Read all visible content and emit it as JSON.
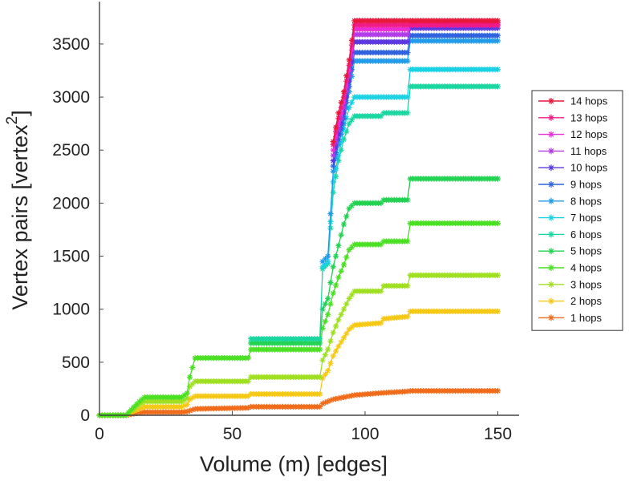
{
  "chart_data": {
    "type": "line",
    "xlabel": "Volume (m) [edges]",
    "ylabel": "Vertex pairs [vertex",
    "ylabel_superscript": "2",
    "ylabel_suffix": "]",
    "xlim": [
      0,
      158
    ],
    "ylim": [
      0,
      3900
    ],
    "xticks": [
      0,
      50,
      100,
      150
    ],
    "yticks": [
      0,
      500,
      1000,
      1500,
      2000,
      2500,
      3000,
      3500
    ],
    "grid": false,
    "legend_position": "right",
    "marker": "asterisk",
    "series": [
      {
        "name": "14 hops",
        "color": "#e8173a",
        "points": [
          [
            88,
            2580
          ],
          [
            90,
            2850
          ],
          [
            92,
            3050
          ],
          [
            94,
            3350
          ],
          [
            96,
            3720
          ],
          [
            116,
            3720
          ],
          [
            150,
            3720
          ]
        ]
      },
      {
        "name": "13 hops",
        "color": "#f01a86",
        "points": [
          [
            88,
            2550
          ],
          [
            90,
            2800
          ],
          [
            92,
            3000
          ],
          [
            94,
            3300
          ],
          [
            96,
            3680
          ],
          [
            116,
            3680
          ],
          [
            150,
            3680
          ]
        ]
      },
      {
        "name": "12 hops",
        "color": "#ea2cd6",
        "points": [
          [
            88,
            2500
          ],
          [
            90,
            2750
          ],
          [
            92,
            2950
          ],
          [
            94,
            3250
          ],
          [
            96,
            3640
          ],
          [
            116,
            3640
          ],
          [
            117,
            3700
          ],
          [
            150,
            3700
          ]
        ]
      },
      {
        "name": "11 hops",
        "color": "#b13ae8",
        "points": [
          [
            88,
            2450
          ],
          [
            90,
            2700
          ],
          [
            92,
            2900
          ],
          [
            94,
            3200
          ],
          [
            96,
            3590
          ],
          [
            116,
            3590
          ],
          [
            117,
            3680
          ],
          [
            150,
            3680
          ]
        ]
      },
      {
        "name": "10 hops",
        "color": "#5a36e0",
        "points": [
          [
            88,
            2400
          ],
          [
            90,
            2650
          ],
          [
            92,
            2850
          ],
          [
            94,
            3150
          ],
          [
            96,
            3520
          ],
          [
            116,
            3520
          ],
          [
            117,
            3650
          ],
          [
            150,
            3650
          ]
        ]
      },
      {
        "name": "9 hops",
        "color": "#2e62de",
        "points": [
          [
            88,
            2350
          ],
          [
            90,
            2600
          ],
          [
            92,
            2800
          ],
          [
            94,
            3100
          ],
          [
            96,
            3420
          ],
          [
            116,
            3420
          ],
          [
            117,
            3580
          ],
          [
            150,
            3580
          ]
        ]
      },
      {
        "name": "8 hops",
        "color": "#1e9ae8",
        "points": [
          [
            84,
            1450
          ],
          [
            86,
            1500
          ],
          [
            88,
            2300
          ],
          [
            90,
            2550
          ],
          [
            92,
            2750
          ],
          [
            94,
            3050
          ],
          [
            96,
            3340
          ],
          [
            116,
            3340
          ],
          [
            117,
            3530
          ],
          [
            150,
            3530
          ]
        ]
      },
      {
        "name": "7 hops",
        "color": "#18d2e4",
        "points": [
          [
            84,
            1400
          ],
          [
            86,
            1450
          ],
          [
            88,
            2200
          ],
          [
            90,
            2450
          ],
          [
            92,
            2700
          ],
          [
            94,
            2900
          ],
          [
            96,
            3000
          ],
          [
            106,
            3000
          ],
          [
            116,
            3000
          ],
          [
            117,
            3260
          ],
          [
            150,
            3260
          ]
        ]
      },
      {
        "name": "6 hops",
        "color": "#18d6a0",
        "points": [
          [
            57,
            720
          ],
          [
            83,
            720
          ],
          [
            84,
            1380
          ],
          [
            86,
            1430
          ],
          [
            88,
            2100
          ],
          [
            90,
            2400
          ],
          [
            92,
            2600
          ],
          [
            94,
            2750
          ],
          [
            96,
            2820
          ],
          [
            106,
            2820
          ],
          [
            107,
            2850
          ],
          [
            116,
            2850
          ],
          [
            117,
            3100
          ],
          [
            150,
            3100
          ]
        ]
      },
      {
        "name": "5 hops",
        "color": "#20d250",
        "points": [
          [
            57,
            680
          ],
          [
            83,
            680
          ],
          [
            84,
            1000
          ],
          [
            86,
            1100
          ],
          [
            88,
            1400
          ],
          [
            90,
            1600
          ],
          [
            92,
            1800
          ],
          [
            94,
            1950
          ],
          [
            96,
            2000
          ],
          [
            106,
            2000
          ],
          [
            107,
            2030
          ],
          [
            116,
            2030
          ],
          [
            117,
            2230
          ],
          [
            150,
            2230
          ]
        ]
      },
      {
        "name": "4 hops",
        "color": "#48e020",
        "points": [
          [
            0,
            0
          ],
          [
            10,
            0
          ],
          [
            13,
            80
          ],
          [
            15,
            130
          ],
          [
            17,
            170
          ],
          [
            31,
            170
          ],
          [
            33,
            210
          ],
          [
            34,
            360
          ],
          [
            36,
            540
          ],
          [
            56,
            540
          ],
          [
            57,
            620
          ],
          [
            83,
            620
          ],
          [
            84,
            820
          ],
          [
            86,
            950
          ],
          [
            88,
            1150
          ],
          [
            90,
            1300
          ],
          [
            92,
            1420
          ],
          [
            94,
            1560
          ],
          [
            96,
            1610
          ],
          [
            106,
            1610
          ],
          [
            107,
            1640
          ],
          [
            116,
            1640
          ],
          [
            117,
            1810
          ],
          [
            150,
            1810
          ]
        ]
      },
      {
        "name": "3 hops",
        "color": "#9ee020",
        "points": [
          [
            0,
            0
          ],
          [
            10,
            0
          ],
          [
            13,
            60
          ],
          [
            15,
            100
          ],
          [
            17,
            130
          ],
          [
            31,
            130
          ],
          [
            33,
            160
          ],
          [
            34,
            270
          ],
          [
            36,
            320
          ],
          [
            56,
            320
          ],
          [
            57,
            360
          ],
          [
            83,
            360
          ],
          [
            84,
            520
          ],
          [
            86,
            620
          ],
          [
            88,
            780
          ],
          [
            90,
            900
          ],
          [
            92,
            1000
          ],
          [
            94,
            1100
          ],
          [
            96,
            1170
          ],
          [
            106,
            1170
          ],
          [
            107,
            1220
          ],
          [
            116,
            1220
          ],
          [
            117,
            1320
          ],
          [
            150,
            1320
          ]
        ]
      },
      {
        "name": "2 hops",
        "color": "#f5c814",
        "points": [
          [
            0,
            0
          ],
          [
            10,
            0
          ],
          [
            13,
            40
          ],
          [
            15,
            60
          ],
          [
            17,
            80
          ],
          [
            31,
            80
          ],
          [
            33,
            100
          ],
          [
            34,
            150
          ],
          [
            36,
            180
          ],
          [
            56,
            180
          ],
          [
            57,
            200
          ],
          [
            83,
            200
          ],
          [
            84,
            350
          ],
          [
            86,
            420
          ],
          [
            88,
            560
          ],
          [
            90,
            650
          ],
          [
            92,
            730
          ],
          [
            94,
            810
          ],
          [
            96,
            850
          ],
          [
            106,
            870
          ],
          [
            107,
            910
          ],
          [
            116,
            930
          ],
          [
            117,
            980
          ],
          [
            150,
            980
          ]
        ]
      },
      {
        "name": "1 hops",
        "color": "#f06a18",
        "points": [
          [
            0,
            0
          ],
          [
            10,
            0
          ],
          [
            13,
            15
          ],
          [
            15,
            25
          ],
          [
            17,
            30
          ],
          [
            31,
            30
          ],
          [
            33,
            35
          ],
          [
            36,
            60
          ],
          [
            56,
            70
          ],
          [
            57,
            80
          ],
          [
            83,
            80
          ],
          [
            84,
            110
          ],
          [
            86,
            130
          ],
          [
            88,
            150
          ],
          [
            90,
            160
          ],
          [
            92,
            170
          ],
          [
            96,
            190
          ],
          [
            106,
            210
          ],
          [
            116,
            225
          ],
          [
            117,
            230
          ],
          [
            150,
            230
          ]
        ]
      }
    ]
  }
}
